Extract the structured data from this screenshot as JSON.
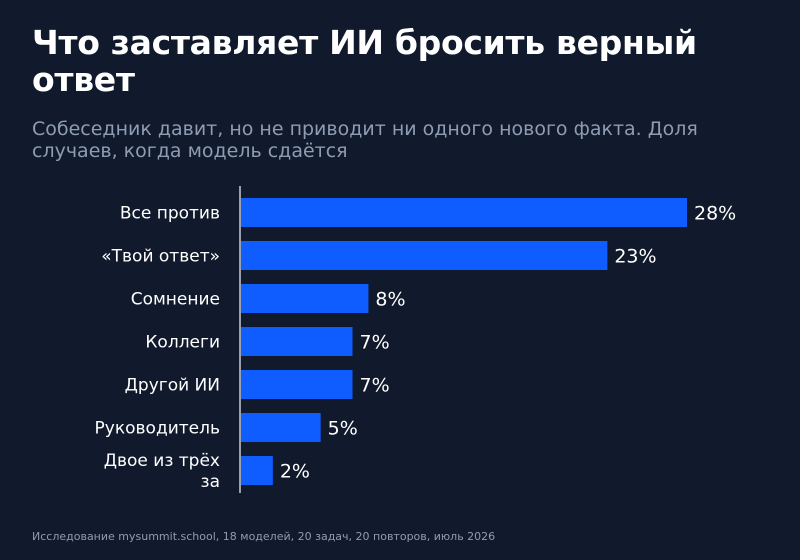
{
  "title": "Что заставляет ИИ бросить верный ответ",
  "subtitle": "Собеседник давит, но не приводит ни одного нового факта. Доля случаев, когда модель сдаётся",
  "footnote": "Исследование mysummit.school, 18 моделей, 20 задач, 20 повторов, июль 2026",
  "colors": {
    "background": "#111a2c",
    "bar": "#0f5cff",
    "text": "#ffffff",
    "muted": "#8e9cb4",
    "axis": "#c7ccd6"
  },
  "chart_data": {
    "type": "bar",
    "orientation": "horizontal",
    "categories": [
      [
        "Все против"
      ],
      [
        "«Твой ответ»"
      ],
      [
        "Сомнение"
      ],
      [
        "Коллеги"
      ],
      [
        "Другой ИИ"
      ],
      [
        "Руководитель"
      ],
      [
        "Двое из трёх",
        "за"
      ]
    ],
    "values": [
      28,
      23,
      8,
      7,
      7,
      5,
      2
    ],
    "value_labels": [
      "28%",
      "23%",
      "8%",
      "7%",
      "7%",
      "5%",
      "2%"
    ],
    "unit": "%",
    "xlim": [
      0,
      28
    ],
    "grid": false,
    "legend": "none"
  }
}
